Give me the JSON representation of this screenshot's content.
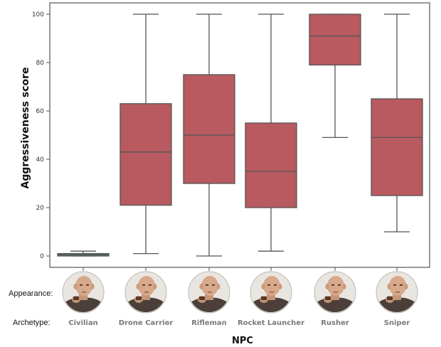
{
  "chart_data": {
    "type": "box",
    "title": "",
    "xlabel": "NPC",
    "ylabel": "Aggressiveness score",
    "ylim": [
      0,
      100
    ],
    "yticks": [
      0,
      20,
      40,
      60,
      80,
      100
    ],
    "grid": false,
    "row_labels": {
      "appearance": "Appearance:",
      "archetype": "Archetype:"
    },
    "categories": [
      "Civilian",
      "Drone Carrier",
      "Rifleman",
      "Rocket Launcher",
      "Rusher",
      "Sniper"
    ],
    "boxes": [
      {
        "category": "Civilian",
        "whisker_low": 0,
        "q1": 0,
        "median": 0.5,
        "q3": 1,
        "whisker_high": 2,
        "color": "#5e8a66"
      },
      {
        "category": "Drone Carrier",
        "whisker_low": 1,
        "q1": 21,
        "median": 43,
        "q3": 63,
        "whisker_high": 100,
        "color": "#b85a60"
      },
      {
        "category": "Rifleman",
        "whisker_low": 0,
        "q1": 30,
        "median": 50,
        "q3": 75,
        "whisker_high": 100,
        "color": "#b85a60"
      },
      {
        "category": "Rocket Launcher",
        "whisker_low": 2,
        "q1": 20,
        "median": 35,
        "q3": 55,
        "whisker_high": 100,
        "color": "#b85a60"
      },
      {
        "category": "Rusher",
        "whisker_low": 49,
        "q1": 79,
        "median": 91,
        "q3": 100,
        "whisker_high": 100,
        "color": "#b85a60"
      },
      {
        "category": "Sniper",
        "whisker_low": 10,
        "q1": 25,
        "median": 49,
        "q3": 65,
        "whisker_high": 100,
        "color": "#b85a60"
      }
    ],
    "appearance_icon": "npc-portrait-icon"
  }
}
